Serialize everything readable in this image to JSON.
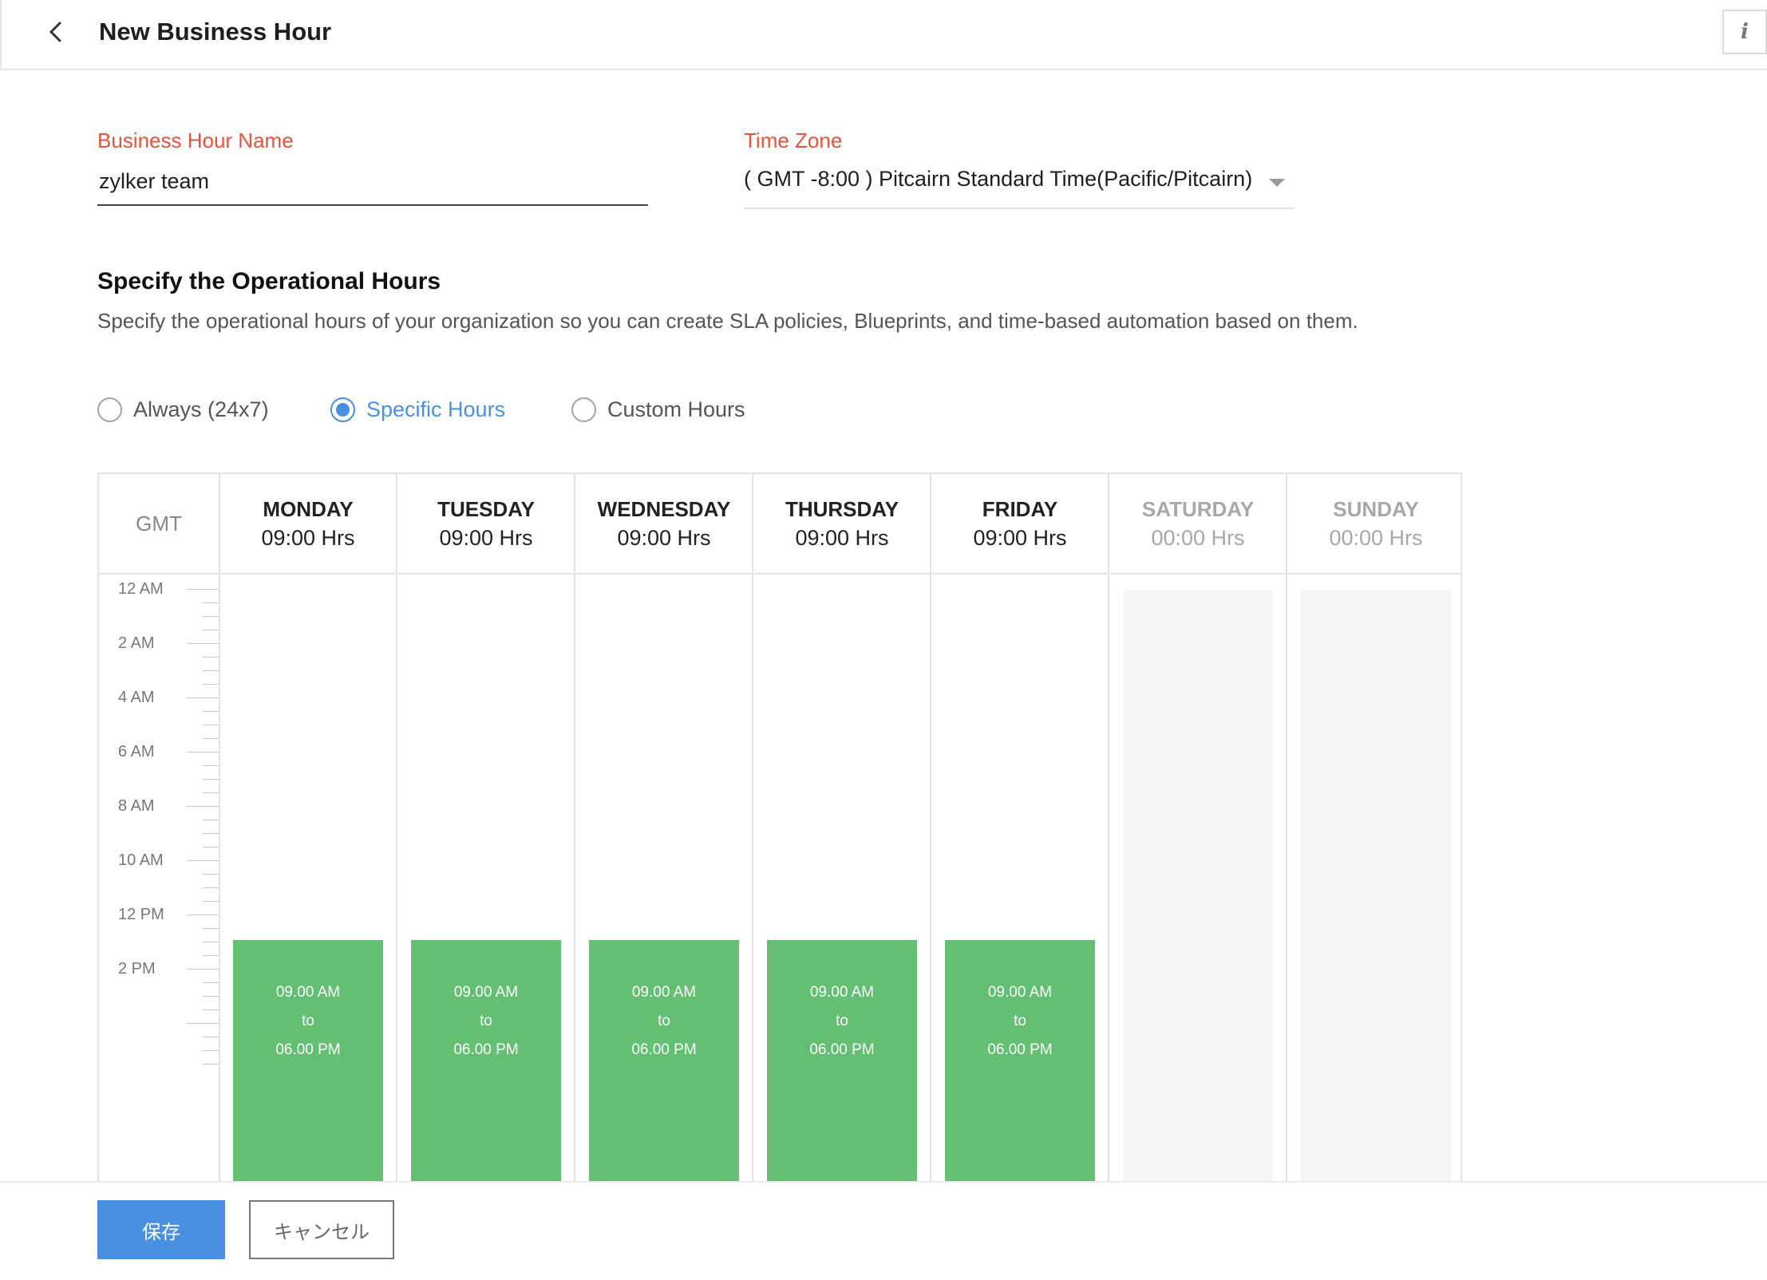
{
  "header": {
    "title": "New Business Hour",
    "info_icon_glyph": "i"
  },
  "form": {
    "name_label": "Business Hour Name",
    "name_value": "zylker team",
    "timezone_label": "Time Zone",
    "timezone_value": "( GMT -8:00 ) Pitcairn Standard Time(Pacific/Pitcairn)"
  },
  "section": {
    "title": "Specify the Operational Hours",
    "description": "Specify the operational hours of your organization so you can create SLA policies, Blueprints, and time-based automation based on them."
  },
  "mode_options": [
    {
      "label": "Always (24x7)",
      "selected": false
    },
    {
      "label": "Specific Hours",
      "selected": true
    },
    {
      "label": "Custom Hours",
      "selected": false
    }
  ],
  "schedule": {
    "axis_header": "GMT",
    "hour_labels": [
      "12 AM",
      "2 AM",
      "4 AM",
      "6 AM",
      "8 AM",
      "10 AM",
      "12 PM",
      "2 PM"
    ],
    "days": [
      {
        "name": "MONDAY",
        "hours": "09:00 Hrs",
        "working": true,
        "start": "09.00 AM",
        "sep": "to",
        "end": "06.00 PM"
      },
      {
        "name": "TUESDAY",
        "hours": "09:00 Hrs",
        "working": true,
        "start": "09.00 AM",
        "sep": "to",
        "end": "06.00 PM"
      },
      {
        "name": "WEDNESDAY",
        "hours": "09:00 Hrs",
        "working": true,
        "start": "09.00 AM",
        "sep": "to",
        "end": "06.00 PM"
      },
      {
        "name": "THURSDAY",
        "hours": "09:00 Hrs",
        "working": true,
        "start": "09.00 AM",
        "sep": "to",
        "end": "06.00 PM"
      },
      {
        "name": "FRIDAY",
        "hours": "09:00 Hrs",
        "working": true,
        "start": "09.00 AM",
        "sep": "to",
        "end": "06.00 PM"
      },
      {
        "name": "SATURDAY",
        "hours": "00:00 Hrs",
        "working": false
      },
      {
        "name": "SUNDAY",
        "hours": "00:00 Hrs",
        "working": false
      }
    ]
  },
  "footer": {
    "save_label": "保存",
    "cancel_label": "キャンセル"
  },
  "colors": {
    "accent": "#4a90e2",
    "label_red": "#e5533c",
    "working_green": "#63c072"
  }
}
